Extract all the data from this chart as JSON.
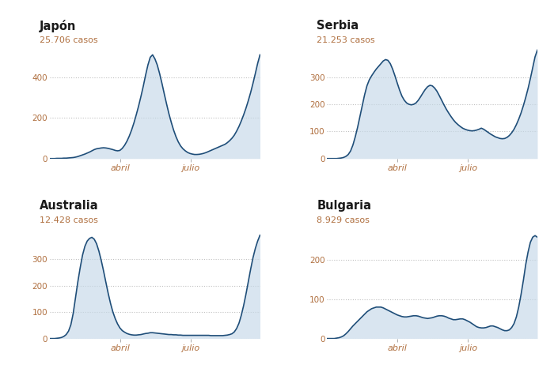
{
  "charts": [
    {
      "title": "Japón",
      "subtitle": "25.706 casos",
      "yticks": [
        0,
        200,
        400
      ],
      "ylim": [
        0,
        560
      ],
      "data_x": [
        0,
        3,
        6,
        9,
        12,
        15,
        18,
        21,
        24,
        27,
        30,
        33,
        36,
        39,
        42,
        45,
        48,
        51,
        54,
        57,
        60,
        63,
        66,
        69,
        72,
        75,
        78,
        81,
        84,
        87,
        90,
        93,
        96,
        99,
        102,
        105,
        108,
        111,
        114,
        117,
        120,
        123,
        126,
        129,
        132,
        135,
        138,
        141,
        144,
        147,
        150,
        153,
        156,
        159,
        162,
        165,
        168,
        171,
        174,
        177,
        180,
        183,
        186,
        189,
        192,
        195,
        198,
        201,
        204,
        207,
        210,
        213,
        216,
        219,
        222,
        225,
        228,
        231,
        234,
        237,
        240,
        243,
        246,
        249,
        252,
        255,
        258,
        261,
        264,
        267,
        270
      ],
      "data_y": [
        0,
        0,
        0,
        1,
        1,
        1,
        2,
        2,
        3,
        4,
        5,
        7,
        10,
        14,
        18,
        22,
        27,
        32,
        38,
        44,
        48,
        50,
        52,
        53,
        52,
        50,
        47,
        44,
        40,
        38,
        40,
        50,
        65,
        85,
        110,
        140,
        175,
        215,
        258,
        305,
        355,
        410,
        460,
        498,
        510,
        490,
        460,
        418,
        370,
        318,
        268,
        220,
        178,
        140,
        108,
        82,
        62,
        48,
        38,
        30,
        25,
        22,
        20,
        20,
        21,
        23,
        26,
        30,
        35,
        40,
        45,
        50,
        55,
        60,
        65,
        70,
        78,
        88,
        100,
        115,
        135,
        158,
        185,
        215,
        248,
        285,
        325,
        370,
        418,
        468,
        510
      ],
      "xtick_positions": [
        90,
        181
      ],
      "xtick_labels": [
        "abril",
        "julio"
      ],
      "xmax": 270
    },
    {
      "title": "Serbia",
      "subtitle": "21.253 casos",
      "yticks": [
        0,
        100,
        200,
        300
      ],
      "ylim": [
        0,
        420
      ],
      "data_x": [
        0,
        3,
        6,
        9,
        12,
        15,
        18,
        21,
        24,
        27,
        30,
        33,
        36,
        39,
        42,
        45,
        48,
        51,
        54,
        57,
        60,
        63,
        66,
        69,
        72,
        75,
        78,
        81,
        84,
        87,
        90,
        93,
        96,
        99,
        102,
        105,
        108,
        111,
        114,
        117,
        120,
        123,
        126,
        129,
        132,
        135,
        138,
        141,
        144,
        147,
        150,
        153,
        156,
        159,
        162,
        165,
        168,
        171,
        174,
        177,
        180,
        183,
        186,
        189,
        192,
        195,
        198,
        201,
        204,
        207,
        210,
        213,
        216,
        219,
        222,
        225,
        228,
        231,
        234,
        237,
        240,
        243,
        246,
        249,
        252,
        255,
        258,
        261,
        264,
        267,
        270
      ],
      "data_y": [
        0,
        0,
        0,
        0,
        0,
        1,
        2,
        4,
        8,
        15,
        28,
        50,
        80,
        115,
        155,
        195,
        235,
        268,
        290,
        305,
        318,
        330,
        340,
        350,
        360,
        365,
        362,
        350,
        330,
        305,
        278,
        252,
        230,
        215,
        205,
        200,
        198,
        200,
        205,
        215,
        228,
        242,
        255,
        265,
        270,
        268,
        260,
        248,
        232,
        215,
        198,
        182,
        168,
        155,
        143,
        133,
        125,
        118,
        112,
        108,
        105,
        103,
        102,
        103,
        105,
        108,
        112,
        108,
        102,
        96,
        90,
        85,
        80,
        77,
        74,
        73,
        74,
        78,
        85,
        95,
        108,
        125,
        145,
        168,
        195,
        225,
        258,
        295,
        335,
        375,
        400
      ],
      "xtick_positions": [
        90,
        181
      ],
      "xtick_labels": [
        "abril",
        "julio"
      ],
      "xmax": 270
    },
    {
      "title": "Australia",
      "subtitle": "12.428 casos",
      "yticks": [
        0,
        100,
        200,
        300
      ],
      "ylim": [
        0,
        430
      ],
      "data_x": [
        0,
        3,
        6,
        9,
        12,
        15,
        18,
        21,
        24,
        27,
        30,
        33,
        36,
        39,
        42,
        45,
        48,
        51,
        54,
        57,
        60,
        63,
        66,
        69,
        72,
        75,
        78,
        81,
        84,
        87,
        90,
        93,
        96,
        99,
        102,
        105,
        108,
        111,
        114,
        117,
        120,
        123,
        126,
        129,
        132,
        135,
        138,
        141,
        144,
        147,
        150,
        153,
        156,
        159,
        162,
        165,
        168,
        171,
        174,
        177,
        180,
        183,
        186,
        189,
        192,
        195,
        198,
        201,
        204,
        207,
        210,
        213,
        216,
        219,
        222,
        225,
        228,
        231,
        234,
        237,
        240,
        243,
        246,
        249,
        252,
        255,
        258,
        261,
        264,
        267,
        270
      ],
      "data_y": [
        0,
        0,
        0,
        1,
        2,
        4,
        8,
        15,
        28,
        52,
        95,
        155,
        215,
        268,
        315,
        348,
        368,
        378,
        382,
        375,
        358,
        330,
        295,
        255,
        212,
        170,
        132,
        100,
        75,
        55,
        40,
        30,
        24,
        19,
        16,
        14,
        13,
        13,
        14,
        15,
        17,
        19,
        20,
        22,
        22,
        21,
        20,
        19,
        18,
        17,
        16,
        15,
        15,
        14,
        14,
        13,
        13,
        12,
        12,
        12,
        12,
        12,
        12,
        12,
        12,
        12,
        12,
        12,
        12,
        11,
        11,
        11,
        11,
        11,
        11,
        12,
        13,
        15,
        18,
        25,
        38,
        58,
        88,
        125,
        168,
        215,
        262,
        305,
        340,
        368,
        390
      ],
      "xtick_positions": [
        90,
        181
      ],
      "xtick_labels": [
        "abril",
        "julio"
      ],
      "xmax": 270
    },
    {
      "title": "Bulgaria",
      "subtitle": "8.929 casos",
      "yticks": [
        0,
        100,
        200
      ],
      "ylim": [
        0,
        290
      ],
      "data_x": [
        0,
        3,
        6,
        9,
        12,
        15,
        18,
        21,
        24,
        27,
        30,
        33,
        36,
        39,
        42,
        45,
        48,
        51,
        54,
        57,
        60,
        63,
        66,
        69,
        72,
        75,
        78,
        81,
        84,
        87,
        90,
        93,
        96,
        99,
        102,
        105,
        108,
        111,
        114,
        117,
        120,
        123,
        126,
        129,
        132,
        135,
        138,
        141,
        144,
        147,
        150,
        153,
        156,
        159,
        162,
        165,
        168,
        171,
        174,
        177,
        180,
        183,
        186,
        189,
        192,
        195,
        198,
        201,
        204,
        207,
        210,
        213,
        216,
        219,
        222,
        225,
        228,
        231,
        234,
        237,
        240,
        243,
        246,
        249,
        252,
        255,
        258,
        261,
        264,
        267,
        270
      ],
      "data_y": [
        0,
        0,
        0,
        0,
        1,
        2,
        4,
        7,
        12,
        18,
        25,
        32,
        38,
        44,
        50,
        56,
        62,
        68,
        72,
        76,
        78,
        80,
        80,
        80,
        78,
        75,
        72,
        69,
        66,
        63,
        60,
        58,
        56,
        55,
        55,
        56,
        57,
        58,
        58,
        57,
        55,
        53,
        52,
        51,
        52,
        53,
        55,
        57,
        58,
        58,
        57,
        55,
        52,
        50,
        48,
        48,
        49,
        50,
        50,
        48,
        45,
        42,
        38,
        34,
        30,
        28,
        27,
        27,
        28,
        30,
        32,
        32,
        30,
        28,
        25,
        22,
        20,
        20,
        22,
        28,
        38,
        55,
        80,
        112,
        148,
        188,
        220,
        245,
        258,
        262,
        258
      ],
      "xtick_positions": [
        90,
        181
      ],
      "xtick_labels": [
        "abril",
        "julio"
      ],
      "xmax": 270
    }
  ],
  "line_color": "#1f4e79",
  "fill_color": "#c5d8e8",
  "fill_alpha": 0.65,
  "line_width": 1.2,
  "grid_color": "#c0c0c0",
  "title_color": "#1a1a1a",
  "subtitle_color": "#b07040",
  "tick_color": "#b07040",
  "bg_color": "#ffffff"
}
